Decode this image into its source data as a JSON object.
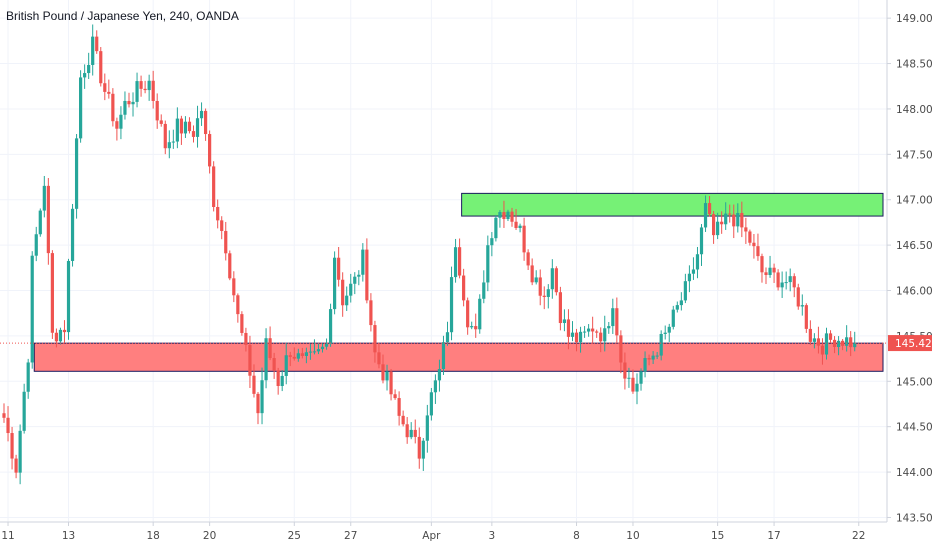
{
  "chart_data": {
    "type": "candlestick",
    "title": "British Pound / Japanese Yen, 240, OANDA",
    "ylim": [
      143.45,
      149.2
    ],
    "y_ticks": [
      143.5,
      144.0,
      144.5,
      145.0,
      145.5,
      146.0,
      146.5,
      147.0,
      147.5,
      148.0,
      148.5,
      149.0
    ],
    "y_tick_labels": [
      "143.500",
      "144.000",
      "144.500",
      "145.000",
      "145.500",
      "146.000",
      "146.500",
      "147.000",
      "147.500",
      "148.000",
      "148.500",
      "149.000"
    ],
    "x_labels": [
      {
        "label": "11",
        "bar": 1
      },
      {
        "label": "13",
        "bar": 16
      },
      {
        "label": "18",
        "bar": 37
      },
      {
        "label": "20",
        "bar": 51
      },
      {
        "label": "25",
        "bar": 72
      },
      {
        "label": "27",
        "bar": 86
      },
      {
        "label": "Apr",
        "bar": 106
      },
      {
        "label": "3",
        "bar": 121
      },
      {
        "label": "8",
        "bar": 142
      },
      {
        "label": "10",
        "bar": 156
      },
      {
        "label": "15",
        "bar": 177
      },
      {
        "label": "17",
        "bar": 191
      },
      {
        "label": "22",
        "bar": 212
      }
    ],
    "bar_count": 220,
    "grid": true,
    "up_color": "#26a69a",
    "down_color": "#ef5350",
    "current_price": {
      "value": 145.421,
      "label": "145.421"
    },
    "zones": [
      {
        "name": "resistance",
        "y_from": 146.82,
        "y_to": 147.07,
        "bar_from": 114,
        "bar_to": 220,
        "color": "#76f176"
      },
      {
        "name": "support",
        "y_from": 145.11,
        "y_to": 145.42,
        "bar_from": 8,
        "bar_to": 220,
        "color": "#ff7f7f"
      }
    ],
    "anchors": [
      [
        0,
        144.6
      ],
      [
        3,
        144.05
      ],
      [
        6,
        145.3
      ],
      [
        7,
        146.3
      ],
      [
        10,
        147.2
      ],
      [
        12,
        145.5
      ],
      [
        15,
        145.6
      ],
      [
        19,
        148.35
      ],
      [
        22,
        148.7
      ],
      [
        25,
        148.2
      ],
      [
        28,
        147.8
      ],
      [
        30,
        148.05
      ],
      [
        33,
        148.2
      ],
      [
        36,
        148.3
      ],
      [
        40,
        147.6
      ],
      [
        43,
        147.8
      ],
      [
        47,
        147.75
      ],
      [
        49,
        148.0
      ],
      [
        52,
        147.0
      ],
      [
        55,
        146.5
      ],
      [
        58,
        145.7
      ],
      [
        61,
        145.1
      ],
      [
        63,
        144.65
      ],
      [
        65,
        145.4
      ],
      [
        68,
        145.0
      ],
      [
        71,
        145.35
      ],
      [
        74,
        145.2
      ],
      [
        77,
        145.25
      ],
      [
        80,
        145.4
      ],
      [
        82,
        146.4
      ],
      [
        84,
        145.9
      ],
      [
        87,
        146.1
      ],
      [
        89,
        146.35
      ],
      [
        92,
        145.3
      ],
      [
        95,
        145.0
      ],
      [
        98,
        144.6
      ],
      [
        101,
        144.4
      ],
      [
        103,
        144.2
      ],
      [
        105,
        144.7
      ],
      [
        108,
        145.1
      ],
      [
        110,
        145.6
      ],
      [
        112,
        146.55
      ],
      [
        115,
        145.7
      ],
      [
        117,
        145.5
      ],
      [
        120,
        146.5
      ],
      [
        122,
        146.85
      ],
      [
        125,
        146.9
      ],
      [
        128,
        146.65
      ],
      [
        131,
        146.2
      ],
      [
        134,
        145.95
      ],
      [
        136,
        146.25
      ],
      [
        138,
        145.75
      ],
      [
        140,
        145.5
      ],
      [
        143,
        145.45
      ],
      [
        146,
        145.6
      ],
      [
        149,
        145.5
      ],
      [
        151,
        145.9
      ],
      [
        153,
        145.25
      ],
      [
        156,
        144.9
      ],
      [
        158,
        145.1
      ],
      [
        161,
        145.3
      ],
      [
        164,
        145.5
      ],
      [
        167,
        145.8
      ],
      [
        170,
        146.1
      ],
      [
        172,
        146.4
      ],
      [
        174,
        146.9
      ],
      [
        176,
        146.6
      ],
      [
        178,
        146.7
      ],
      [
        180,
        146.85
      ],
      [
        182,
        146.75
      ],
      [
        185,
        146.55
      ],
      [
        188,
        146.2
      ],
      [
        191,
        146.15
      ],
      [
        194,
        146.1
      ],
      [
        196,
        146.0
      ],
      [
        198,
        145.8
      ],
      [
        200,
        145.5
      ],
      [
        203,
        145.4
      ],
      [
        206,
        145.48
      ],
      [
        209,
        145.45
      ],
      [
        211,
        145.42
      ]
    ]
  }
}
